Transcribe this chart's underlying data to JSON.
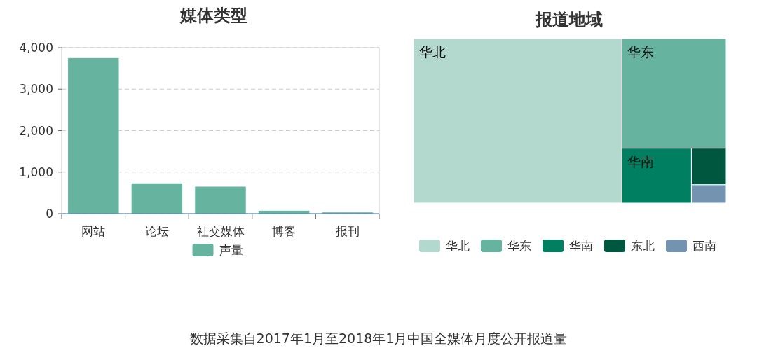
{
  "chart_data": [
    {
      "type": "bar",
      "title": "媒体类型",
      "categories": [
        "网站",
        "论坛",
        "社交媒体",
        "博客",
        "报刊"
      ],
      "series": [
        {
          "name": "声量",
          "color": "#66b3a0",
          "values": [
            3750,
            730,
            650,
            70,
            30
          ]
        }
      ],
      "ylim": [
        0,
        4000
      ],
      "yticks": [
        0,
        {
          "value": 1000,
          "label": "1,000"
        },
        {
          "value": 2000,
          "label": "2,000"
        },
        {
          "value": 3000,
          "label": "3,000"
        },
        {
          "value": 4000,
          "label": "4,000"
        }
      ],
      "grid": "y",
      "legend": "bottom",
      "annotations": [
        "数据采集自2017年1月至2018年1月中国全媒体月度公开报道量"
      ]
    },
    {
      "type": "other",
      "title": "报道地域",
      "categories": [
        "华北",
        "华东",
        "华南",
        "东北",
        "西南"
      ],
      "colors": [
        "#b3d9cf",
        "#66b3a0",
        "#008060",
        "#00573f",
        "#7393b0"
      ]
    }
  ]
}
